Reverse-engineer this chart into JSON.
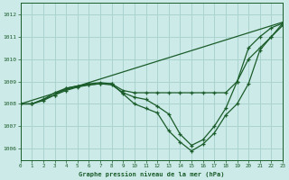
{
  "background_color": "#cceae7",
  "grid_color": "#aad4d0",
  "line_color": "#1a5c2a",
  "title": "Graphe pression niveau de la mer (hPa)",
  "xlim": [
    0,
    23
  ],
  "ylim": [
    1005.5,
    1012.5
  ],
  "yticks": [
    1006,
    1007,
    1008,
    1009,
    1010,
    1011,
    1012
  ],
  "xticks": [
    0,
    1,
    2,
    3,
    4,
    5,
    6,
    7,
    8,
    9,
    10,
    11,
    12,
    13,
    14,
    15,
    16,
    17,
    18,
    19,
    20,
    21,
    22,
    23
  ],
  "series": [
    {
      "x": [
        0,
        23
      ],
      "y": [
        1008.0,
        1011.65
      ],
      "marker": null,
      "lw": 0.9
    },
    {
      "x": [
        0,
        1,
        2,
        3,
        4,
        5,
        6,
        7,
        8,
        9,
        10,
        11,
        12,
        13,
        14,
        15,
        16,
        17,
        18,
        19,
        20,
        21,
        22,
        23
      ],
      "y": [
        1008.0,
        1008.0,
        1008.15,
        1008.4,
        1008.7,
        1008.8,
        1008.9,
        1008.95,
        1008.9,
        1008.6,
        1008.5,
        1008.5,
        1008.5,
        1008.5,
        1008.5,
        1008.5,
        1008.5,
        1008.5,
        1008.5,
        1009.0,
        1010.0,
        1010.5,
        1011.0,
        1011.5
      ],
      "marker": "+",
      "lw": 0.9
    },
    {
      "x": [
        0,
        1,
        2,
        3,
        4,
        5,
        6,
        7,
        8,
        9,
        10,
        11,
        12,
        13,
        14,
        15,
        16,
        17,
        18,
        19,
        20,
        21,
        22,
        23
      ],
      "y": [
        1008.0,
        1008.0,
        1008.2,
        1008.5,
        1008.7,
        1008.8,
        1008.85,
        1008.9,
        1008.9,
        1008.45,
        1008.0,
        1007.8,
        1007.6,
        1006.8,
        1006.3,
        1005.9,
        1006.2,
        1006.7,
        1007.5,
        1008.0,
        1008.9,
        1010.4,
        1011.0,
        1011.6
      ],
      "marker": "+",
      "lw": 0.9
    },
    {
      "x": [
        0,
        1,
        2,
        3,
        4,
        5,
        6,
        7,
        8,
        9,
        10,
        11,
        12,
        13,
        14,
        15,
        16,
        17,
        18,
        19,
        20,
        21,
        22,
        23
      ],
      "y": [
        1008.0,
        1008.0,
        1008.2,
        1008.4,
        1008.6,
        1008.75,
        1008.85,
        1008.9,
        1008.85,
        1008.5,
        1008.3,
        1008.2,
        1007.9,
        1007.55,
        1006.65,
        1006.15,
        1006.4,
        1007.0,
        1007.8,
        1009.0,
        1010.5,
        1011.0,
        1011.4,
        1011.6
      ],
      "marker": "+",
      "lw": 0.9
    }
  ]
}
